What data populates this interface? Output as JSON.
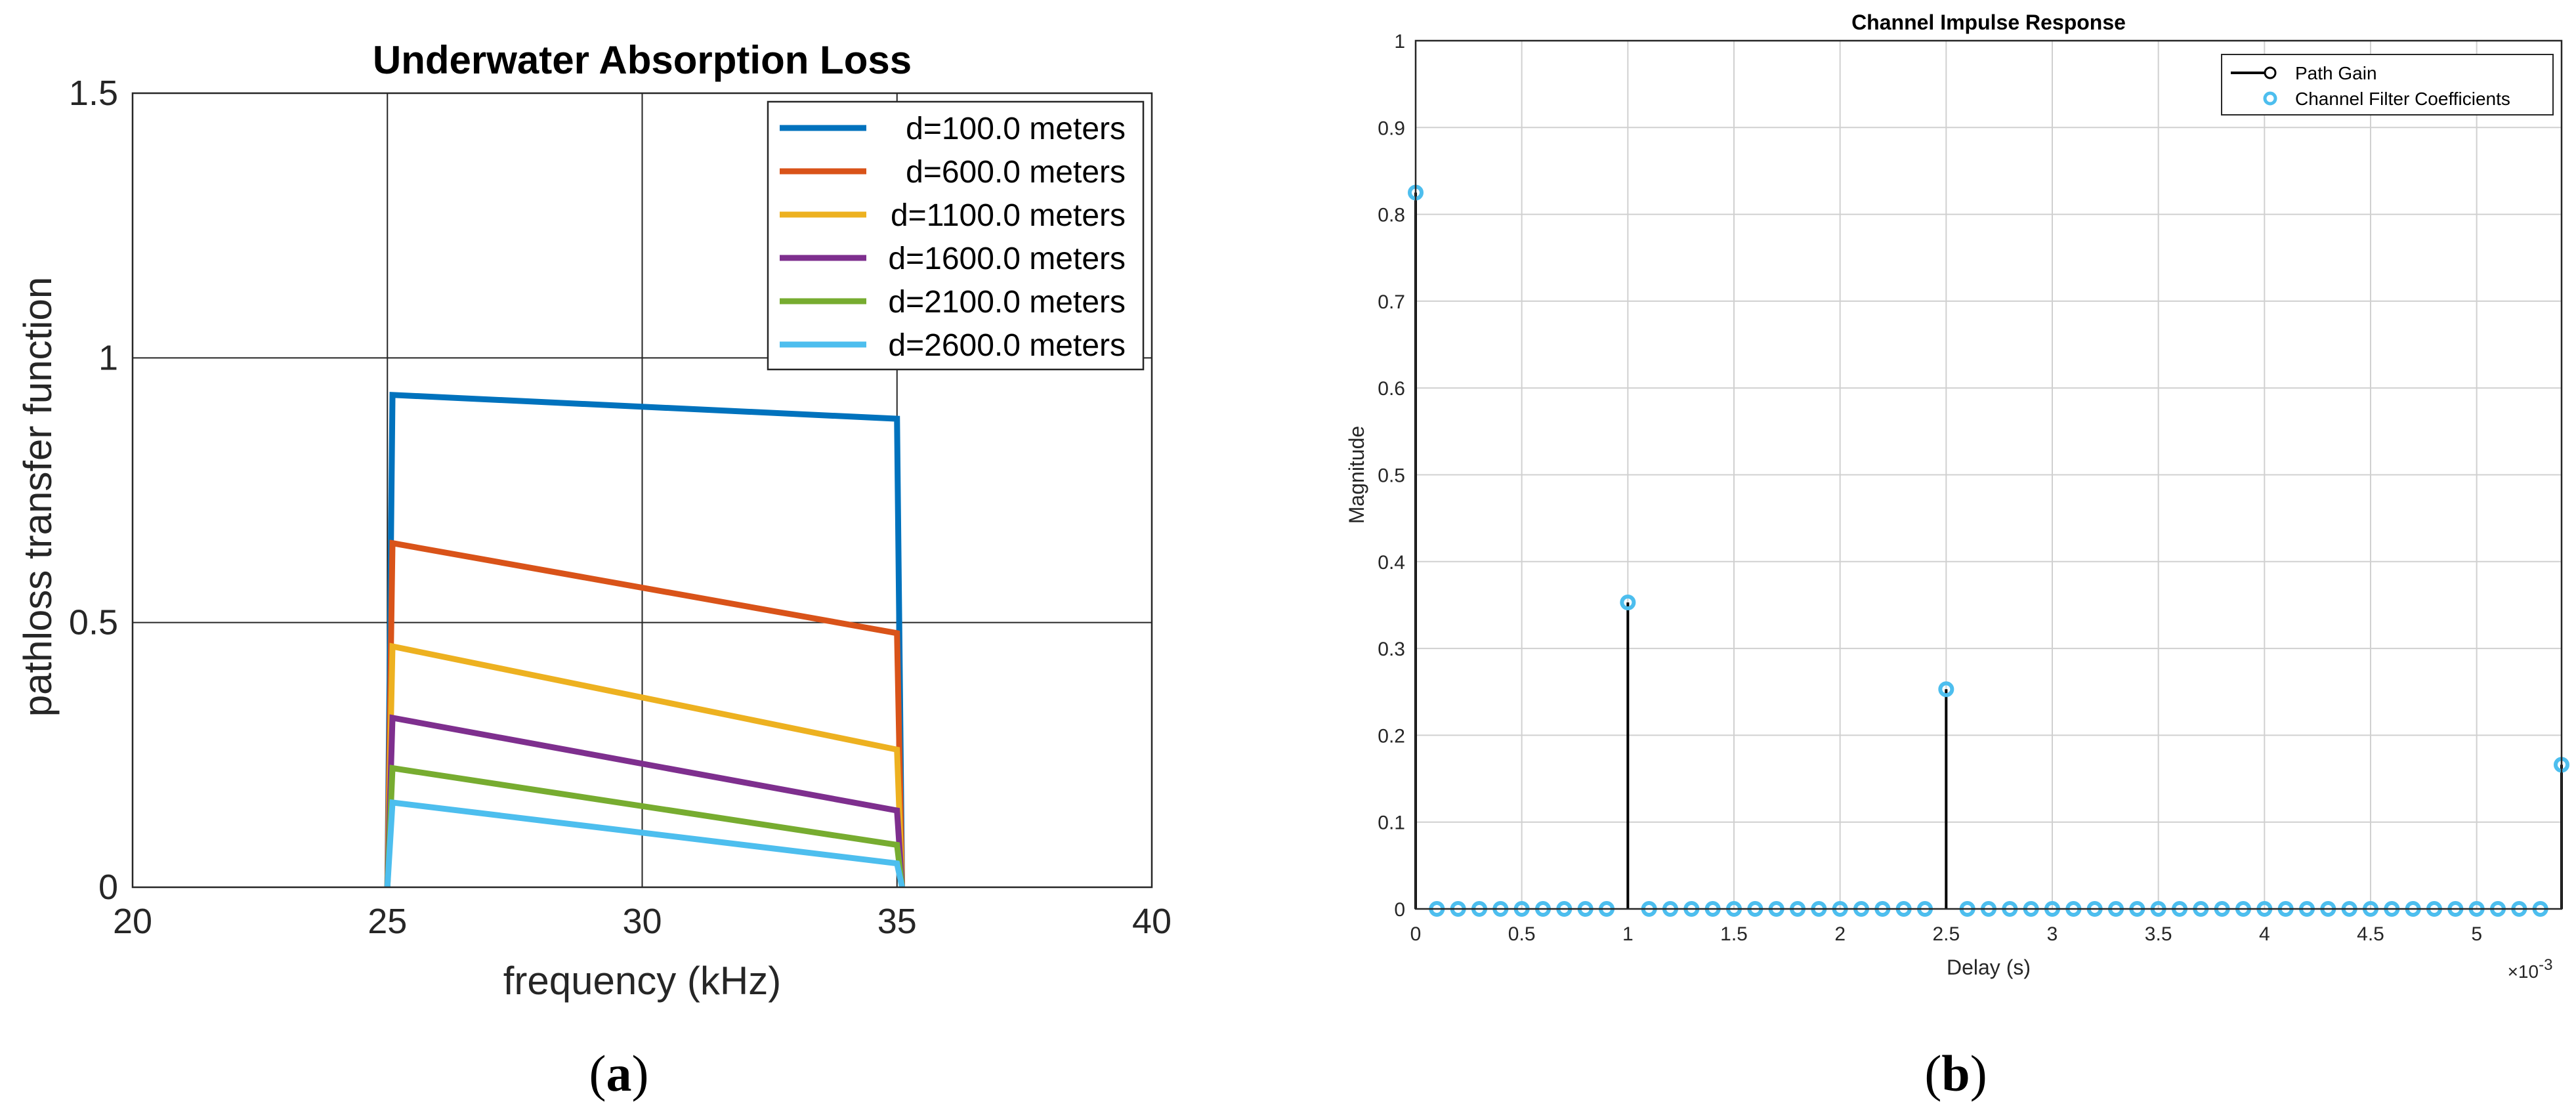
{
  "panels": {
    "a_label": "(a)",
    "b_label": "(b)"
  },
  "chart_data": [
    {
      "type": "line",
      "title": "Underwater Absorption Loss",
      "xlabel": "frequency (kHz)",
      "ylabel": "pathloss transfer function",
      "xlim": [
        20,
        40
      ],
      "ylim": [
        0,
        1.5
      ],
      "xticks": [
        20,
        25,
        30,
        35,
        40
      ],
      "xticklabels": [
        "20",
        "25",
        "30",
        "35",
        "40"
      ],
      "yticks": [
        0,
        0.5,
        1,
        1.5
      ],
      "yticklabels": [
        "0",
        "0.5",
        "1",
        "1.5"
      ],
      "grid": true,
      "legend_position": "top-right",
      "series": [
        {
          "name": "d=100.0 meters",
          "color": "#0072BD",
          "x": [
            25,
            25.1,
            35,
            35.1
          ],
          "y": [
            0,
            0.93,
            0.885,
            0
          ]
        },
        {
          "name": "d=600.0 meters",
          "color": "#D95319",
          "x": [
            25,
            25.1,
            35,
            35.1
          ],
          "y": [
            0,
            0.65,
            0.48,
            0
          ]
        },
        {
          "name": "d=1100.0 meters",
          "color": "#EDB120",
          "x": [
            25,
            25.1,
            35,
            35.1
          ],
          "y": [
            0,
            0.455,
            0.26,
            0
          ]
        },
        {
          "name": "d=1600.0 meters",
          "color": "#7E2F8E",
          "x": [
            25,
            25.1,
            35,
            35.1
          ],
          "y": [
            0,
            0.32,
            0.145,
            0
          ]
        },
        {
          "name": "d=2100.0 meters",
          "color": "#77AC30",
          "x": [
            25,
            25.1,
            35,
            35.1
          ],
          "y": [
            0,
            0.225,
            0.08,
            0
          ]
        },
        {
          "name": "d=2600.0 meters",
          "color": "#4DBEEE",
          "x": [
            25,
            25.1,
            35,
            35.1
          ],
          "y": [
            0,
            0.16,
            0.045,
            0
          ]
        }
      ]
    },
    {
      "type": "stem",
      "title": "Channel Impulse Response",
      "xlabel": "Delay (s)",
      "ylabel": "Magnitude",
      "x_exponent_label": "×10",
      "x_exponent_power": "-3",
      "xlim": [
        0,
        5.4
      ],
      "ylim": [
        0,
        1
      ],
      "xticks": [
        0,
        0.5,
        1,
        1.5,
        2,
        2.5,
        3,
        3.5,
        4,
        4.5,
        5
      ],
      "xticklabels": [
        "0",
        "0.5",
        "1",
        "1.5",
        "2",
        "2.5",
        "3",
        "3.5",
        "4",
        "4.5",
        "5"
      ],
      "yticks": [
        0,
        0.1,
        0.2,
        0.3,
        0.4,
        0.5,
        0.6,
        0.7,
        0.8,
        0.9,
        1
      ],
      "yticklabels": [
        "0",
        "0.1",
        "0.2",
        "0.3",
        "0.4",
        "0.5",
        "0.6",
        "0.7",
        "0.8",
        "0.9",
        "1"
      ],
      "grid": true,
      "legend_position": "top-right",
      "path_gain": {
        "name": "Path Gain",
        "color": "#000000",
        "x": [
          0,
          1,
          2.5,
          5.4
        ],
        "y": [
          0.825,
          0.353,
          0.253,
          0.166
        ]
      },
      "filter_coefficients": {
        "name": "Channel Filter Coefficients",
        "color": "#4DBEEE",
        "x_start": 0,
        "x_step": 0.1,
        "count": 55,
        "nonzero": {
          "0": 0.825,
          "10": 0.353,
          "25": 0.253,
          "54": 0.166
        }
      }
    }
  ]
}
